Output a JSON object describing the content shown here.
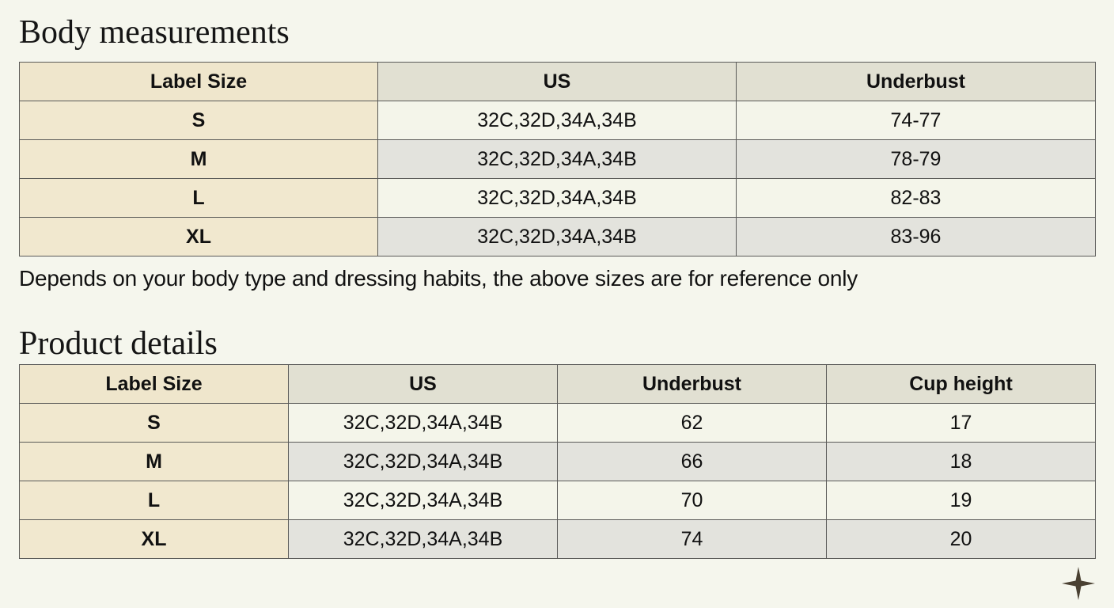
{
  "body_measurements": {
    "title": "Body measurements",
    "headers": [
      "Label Size",
      "US",
      "Underbust"
    ],
    "rows": [
      [
        "S",
        "32C,32D,34A,34B",
        "74-77"
      ],
      [
        "M",
        "32C,32D,34A,34B",
        "78-79"
      ],
      [
        "L",
        "32C,32D,34A,34B",
        "82-83"
      ],
      [
        "XL",
        "32C,32D,34A,34B",
        "83-96"
      ]
    ]
  },
  "note": "Depends on your body type and dressing habits, the above sizes are for reference only",
  "product_details": {
    "title": "Product details",
    "headers": [
      "Label Size",
      "US",
      "Underbust",
      "Cup height"
    ],
    "rows": [
      [
        "S",
        "32C,32D,34A,34B",
        "62",
        "17"
      ],
      [
        "M",
        "32C,32D,34A,34B",
        "66",
        "18"
      ],
      [
        "L",
        "32C,32D,34A,34B",
        "70",
        "19"
      ],
      [
        "XL",
        "32C,32D,34A,34B",
        "74",
        "20"
      ]
    ]
  },
  "icons": {
    "corner_mark": "sparkle-icon"
  }
}
